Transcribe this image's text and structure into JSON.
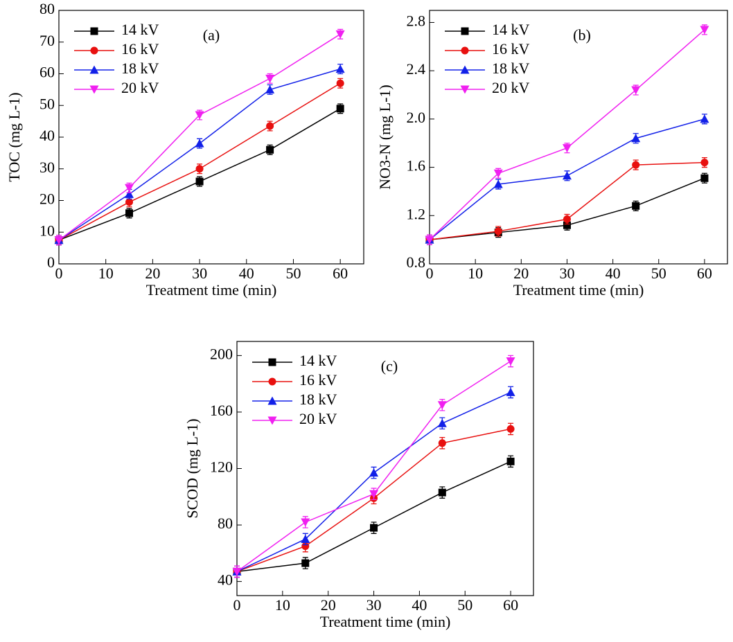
{
  "chart_data": [
    {
      "type": "line",
      "y_label": "TOC (mg L-1)",
      "x_label": "Treatment time (min)",
      "annotation": "(a)",
      "x": [
        0,
        15,
        30,
        45,
        60
      ],
      "xlim": [
        0,
        65
      ],
      "xticks": [
        0,
        10,
        20,
        30,
        40,
        50,
        60
      ],
      "ylim": [
        0,
        80
      ],
      "yticks": [
        0,
        10,
        20,
        30,
        40,
        50,
        60,
        70,
        80
      ],
      "legend": "upper-left",
      "series": [
        {
          "name": "14 kV",
          "color": "#000000",
          "marker": "square",
          "values": [
            7.5,
            16,
            26,
            36,
            49
          ],
          "errors": [
            1.5,
            1.5,
            1.5,
            1.5,
            1.5
          ]
        },
        {
          "name": "16 kV",
          "color": "#e8100f",
          "marker": "circle",
          "values": [
            7.5,
            19.5,
            30,
            43.5,
            57
          ],
          "errors": [
            1.5,
            1.5,
            1.5,
            1.5,
            1.5
          ]
        },
        {
          "name": "18 kV",
          "color": "#1220e8",
          "marker": "triangle-up",
          "values": [
            7.5,
            22,
            38,
            55,
            61.5
          ],
          "errors": [
            1.5,
            1.5,
            1.5,
            1.5,
            1.5
          ]
        },
        {
          "name": "20 kV",
          "color": "#f020f0",
          "marker": "triangle-down",
          "values": [
            7.5,
            24,
            47,
            58.5,
            72.5
          ],
          "errors": [
            1.5,
            1.5,
            1.5,
            1.5,
            1.5
          ]
        }
      ]
    },
    {
      "type": "line",
      "y_label": "NO3-N (mg L-1)",
      "x_label": "Treatment time (min)",
      "annotation": "(b)",
      "x": [
        0,
        15,
        30,
        45,
        60
      ],
      "xlim": [
        0,
        65
      ],
      "xticks": [
        0,
        10,
        20,
        30,
        40,
        50,
        60
      ],
      "ylim": [
        0.8,
        2.9
      ],
      "yticks": [
        0.8,
        1.2,
        1.6,
        {
          "value": 2,
          "label": "2.0"
        },
        2.4,
        2.8
      ],
      "legend": "upper-left",
      "series": [
        {
          "name": "14 kV",
          "color": "#000000",
          "marker": "square",
          "values": [
            1.0,
            1.06,
            1.12,
            1.28,
            1.51
          ],
          "errors": [
            0.04,
            0.04,
            0.04,
            0.04,
            0.04
          ]
        },
        {
          "name": "16 kV",
          "color": "#e8100f",
          "marker": "circle",
          "values": [
            1.0,
            1.07,
            1.17,
            1.62,
            1.64
          ],
          "errors": [
            0.04,
            0.04,
            0.04,
            0.04,
            0.04
          ]
        },
        {
          "name": "18 kV",
          "color": "#1220e8",
          "marker": "triangle-up",
          "values": [
            1.0,
            1.46,
            1.53,
            1.84,
            2.0
          ],
          "errors": [
            0.04,
            0.04,
            0.04,
            0.04,
            0.04
          ]
        },
        {
          "name": "20 kV",
          "color": "#f020f0",
          "marker": "triangle-down",
          "values": [
            1.0,
            1.55,
            1.76,
            2.24,
            2.74
          ],
          "errors": [
            0.04,
            0.04,
            0.04,
            0.04,
            0.04
          ]
        }
      ]
    },
    {
      "type": "line",
      "y_label": "SCOD (mg L-1)",
      "x_label": "Treatment time (min)",
      "annotation": "(c)",
      "x": [
        0,
        15,
        30,
        45,
        60
      ],
      "xlim": [
        0,
        65
      ],
      "xticks": [
        0,
        10,
        20,
        30,
        40,
        50,
        60
      ],
      "ylim": [
        30,
        210
      ],
      "yticks": [
        40,
        80,
        120,
        160,
        200
      ],
      "legend": "upper-left",
      "series": [
        {
          "name": "14 kV",
          "color": "#000000",
          "marker": "square",
          "values": [
            47,
            53,
            78,
            103,
            125
          ],
          "errors": [
            4,
            4,
            4,
            4,
            4
          ]
        },
        {
          "name": "16 kV",
          "color": "#e8100f",
          "marker": "circle",
          "values": [
            47,
            65,
            99,
            138,
            148
          ],
          "errors": [
            4,
            4,
            4,
            4,
            4
          ]
        },
        {
          "name": "18 kV",
          "color": "#1220e8",
          "marker": "triangle-up",
          "values": [
            47,
            70,
            117,
            152,
            174
          ],
          "errors": [
            4,
            4,
            4,
            4,
            4
          ]
        },
        {
          "name": "20 kV",
          "color": "#f020f0",
          "marker": "triangle-down",
          "values": [
            47,
            82,
            102,
            165,
            196
          ],
          "errors": [
            4,
            4,
            4,
            4,
            4
          ]
        }
      ]
    }
  ]
}
